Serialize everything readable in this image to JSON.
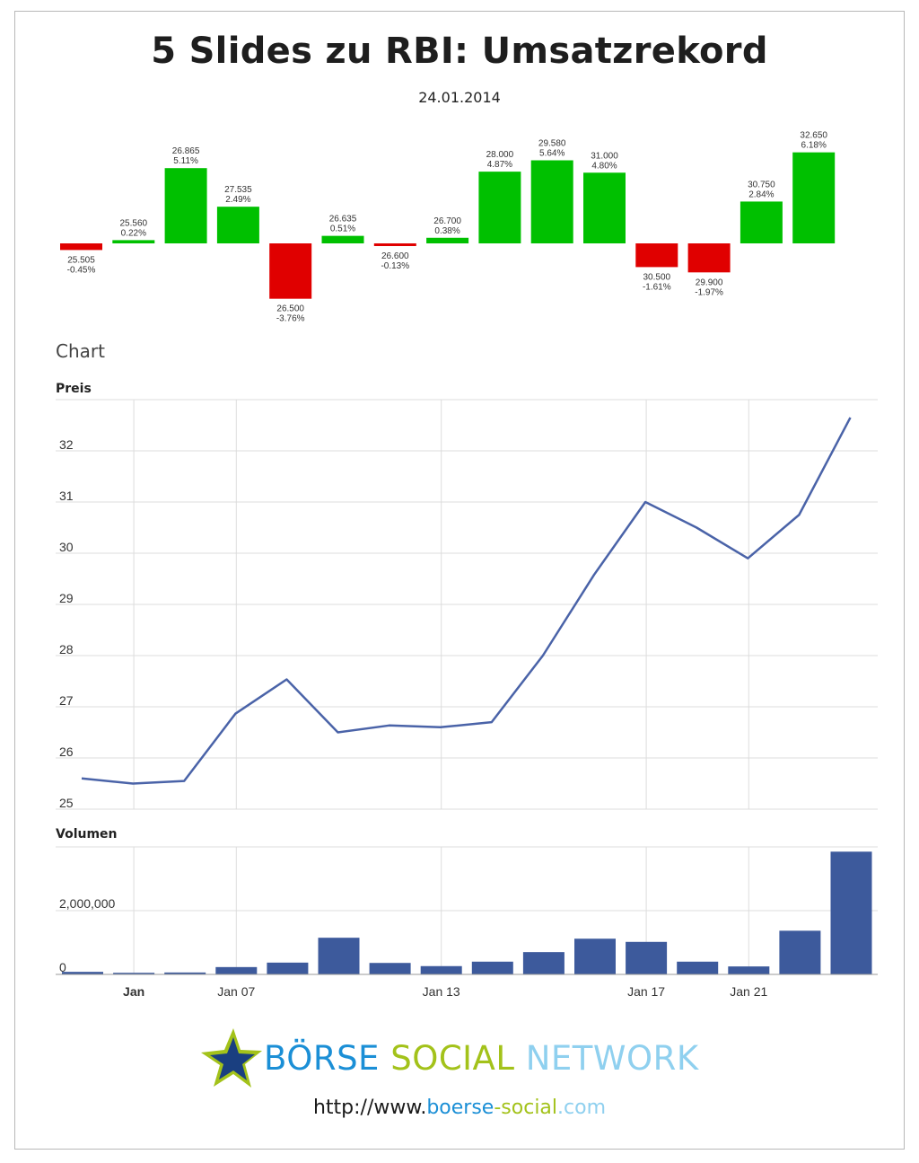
{
  "header": {
    "title": "5 Slides zu RBI: Umsatzrekord",
    "date": "24.01.2014"
  },
  "section_label": "Chart",
  "logo": {
    "word1": "BÖRSE",
    "word2": "SOCIAL",
    "word3": "NETWORK",
    "icon": "star-icon"
  },
  "url": {
    "part1": "http://www.",
    "part2": "boerse",
    "part3": "-social",
    "part4": ".com"
  },
  "colors": {
    "up": "#00c000",
    "down": "#e00000",
    "line": "#4a63a8",
    "volume": "#3d5a9c",
    "grid": "#dddddd",
    "logo_blue": "#1b8fd6",
    "logo_green": "#a3c21a",
    "logo_lightblue": "#8fd0ef"
  },
  "chart_data": [
    {
      "type": "bar",
      "description_role": "daily change bars",
      "values": [
        {
          "price": "25.505",
          "change": "-0.45%",
          "pct": -0.45
        },
        {
          "price": "25.560",
          "change": "0.22%",
          "pct": 0.22
        },
        {
          "price": "26.865",
          "change": "5.11%",
          "pct": 5.11
        },
        {
          "price": "27.535",
          "change": "2.49%",
          "pct": 2.49
        },
        {
          "price": "26.500",
          "change": "-3.76%",
          "pct": -3.76
        },
        {
          "price": "26.635",
          "change": "0.51%",
          "pct": 0.51
        },
        {
          "price": "26.600",
          "change": "-0.13%",
          "pct": -0.13
        },
        {
          "price": "26.700",
          "change": "0.38%",
          "pct": 0.38
        },
        {
          "price": "28.000",
          "change": "4.87%",
          "pct": 4.87
        },
        {
          "price": "29.580",
          "change": "5.64%",
          "pct": 5.64
        },
        {
          "price": "31.000",
          "change": "4.80%",
          "pct": 4.8
        },
        {
          "price": "30.500",
          "change": "-1.61%",
          "pct": -1.61
        },
        {
          "price": "29.900",
          "change": "-1.97%",
          "pct": -1.97
        },
        {
          "price": "30.750",
          "change": "2.84%",
          "pct": 2.84
        },
        {
          "price": "32.650",
          "change": "6.18%",
          "pct": 6.18
        }
      ]
    },
    {
      "type": "line",
      "title": "Preis",
      "ylim": [
        25,
        33
      ],
      "yticks": [
        25,
        26,
        27,
        28,
        29,
        30,
        31,
        32
      ],
      "grid": true,
      "x_tick_labels": [
        {
          "label": "Jan 07",
          "index": 3
        },
        {
          "label": "Jan 13",
          "index": 7
        },
        {
          "label": "Jan 17",
          "index": 11
        },
        {
          "label": "Jan 21",
          "index": 13
        }
      ],
      "values": [
        25.6,
        25.5,
        25.55,
        26.865,
        27.535,
        26.5,
        26.635,
        26.6,
        26.7,
        28.0,
        29.58,
        31.0,
        30.5,
        29.9,
        30.75,
        32.65
      ]
    },
    {
      "type": "bar",
      "title": "Volumen",
      "ylim": [
        0,
        4000000
      ],
      "yticks": [
        "0",
        "2,000,000"
      ],
      "grid": true,
      "x_tick_labels": [
        {
          "label": "Jan",
          "index": 1,
          "bold": true
        },
        {
          "label": "Jan 07",
          "index": 3
        },
        {
          "label": "Jan 13",
          "index": 7
        },
        {
          "label": "Jan 17",
          "index": 11
        },
        {
          "label": "Jan 21",
          "index": 13
        }
      ],
      "values": [
        80000,
        50000,
        60000,
        230000,
        370000,
        1150000,
        360000,
        260000,
        400000,
        700000,
        1120000,
        1020000,
        400000,
        250000,
        1370000,
        3850000
      ]
    }
  ]
}
